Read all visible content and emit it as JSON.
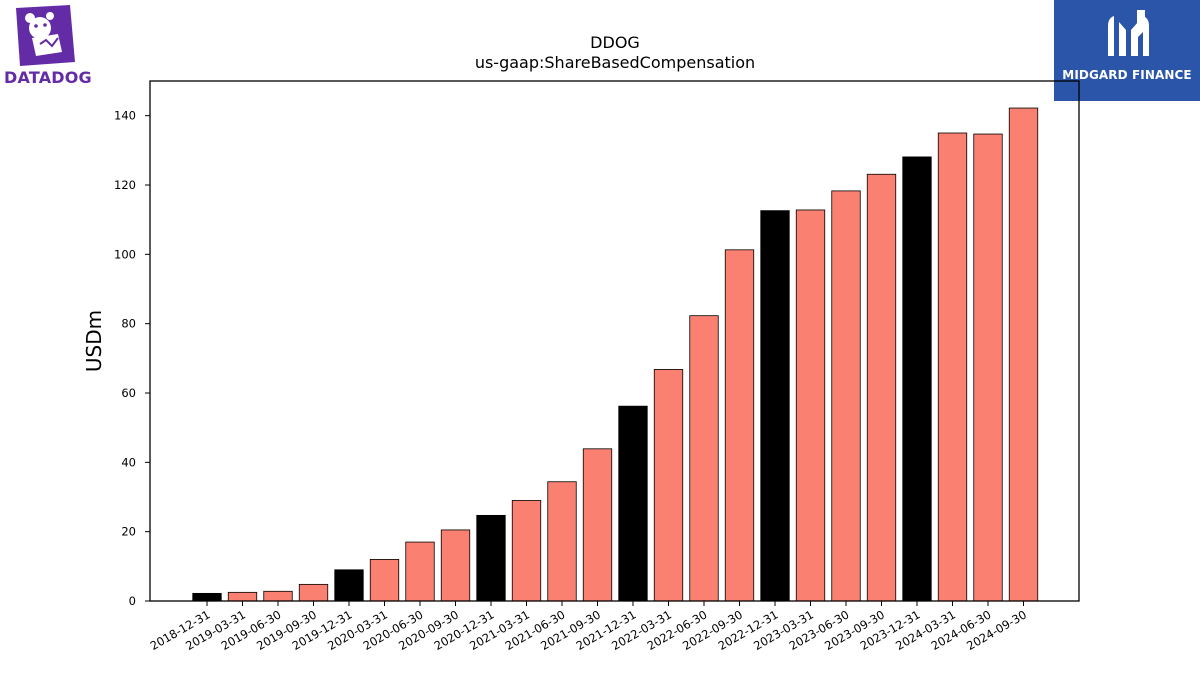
{
  "logos": {
    "left_text": "DATADOG",
    "right_text": "MIDGARD FINANCE",
    "left_color": "#632ca6",
    "right_bg": "#2a55a8"
  },
  "chart_data": {
    "type": "bar",
    "title": "DDOG",
    "subtitle": "us-gaap:ShareBasedCompensation",
    "xlabel": "",
    "ylabel": "USDm",
    "ylim": [
      0,
      150
    ],
    "yticks": [
      0,
      20,
      40,
      60,
      80,
      100,
      120,
      140
    ],
    "grid": false,
    "colors": {
      "annual": "#000000",
      "quarterly": "#fa8072",
      "edge": "#000000"
    },
    "categories": [
      "2018-12-31",
      "2019-03-31",
      "2019-06-30",
      "2019-09-30",
      "2019-12-31",
      "2020-03-31",
      "2020-06-30",
      "2020-09-30",
      "2020-12-31",
      "2021-03-31",
      "2021-06-30",
      "2021-09-30",
      "2021-12-31",
      "2022-03-31",
      "2022-06-30",
      "2022-09-30",
      "2022-12-31",
      "2023-03-31",
      "2023-06-30",
      "2023-09-30",
      "2023-12-31",
      "2024-03-31",
      "2024-06-30",
      "2024-09-30"
    ],
    "values": [
      2.2,
      2.5,
      2.8,
      4.8,
      9.0,
      12.0,
      17.0,
      20.5,
      24.7,
      29.0,
      34.4,
      43.9,
      56.2,
      66.8,
      82.3,
      101.3,
      112.6,
      112.8,
      118.3,
      123.1,
      128.1,
      135.0,
      134.7,
      142.2
    ],
    "annual": [
      true,
      false,
      false,
      false,
      true,
      false,
      false,
      false,
      true,
      false,
      false,
      false,
      true,
      false,
      false,
      false,
      true,
      false,
      false,
      false,
      true,
      false,
      false,
      false
    ]
  }
}
